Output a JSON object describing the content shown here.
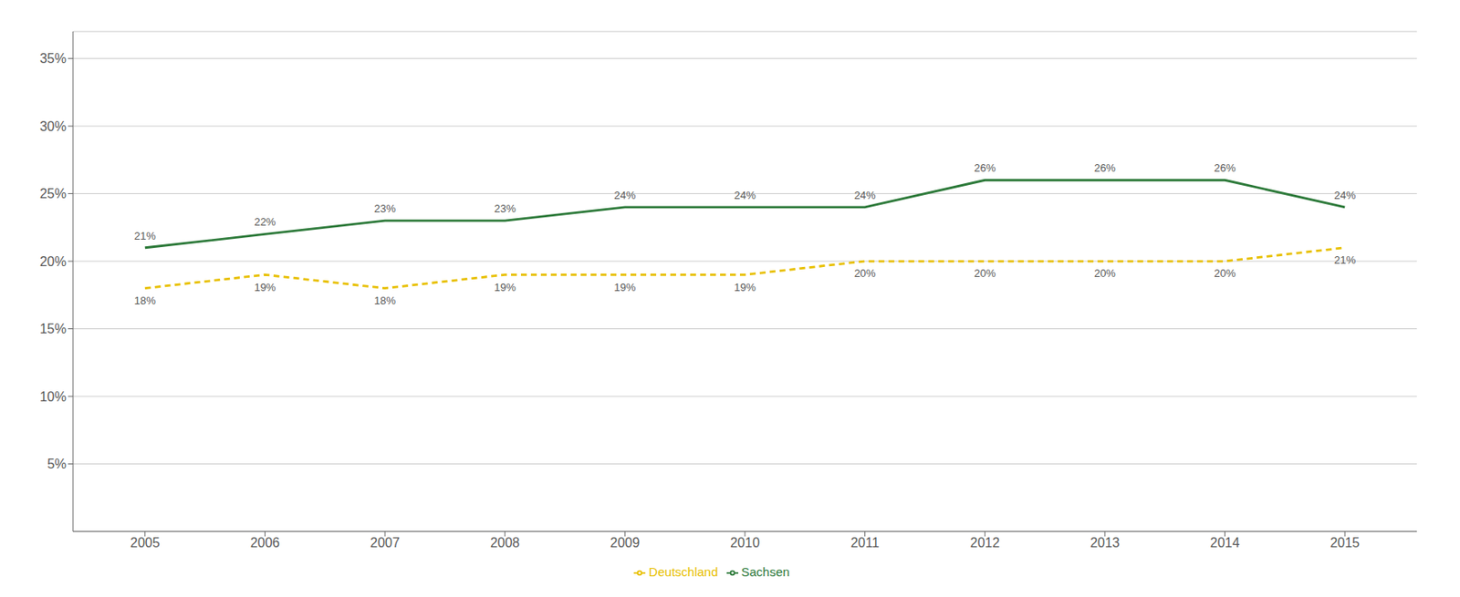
{
  "chart_data": {
    "type": "line",
    "x": [
      2005,
      2006,
      2007,
      2008,
      2009,
      2010,
      2011,
      2012,
      2013,
      2014,
      2015
    ],
    "xlim": [
      2004.4,
      2015.6
    ],
    "xticks": [
      2005,
      2006,
      2007,
      2008,
      2009,
      2010,
      2011,
      2012,
      2013,
      2014,
      2015
    ],
    "ylim": [
      0.0,
      0.37
    ],
    "yticks": [
      {
        "value": 0.05,
        "label": "5%"
      },
      {
        "value": 0.1,
        "label": "10%"
      },
      {
        "value": 0.15,
        "label": "15%"
      },
      {
        "value": 0.2,
        "label": "20%"
      },
      {
        "value": 0.25,
        "label": "25%"
      },
      {
        "value": 0.3,
        "label": "30%"
      },
      {
        "value": 0.35,
        "label": "35%"
      }
    ],
    "grid": true,
    "legend": "bottom",
    "data_labels": true,
    "series": [
      {
        "name": "Sachsen",
        "color": "#2d7a3a",
        "line_style": "solid",
        "values": [
          0.21,
          0.22,
          0.23,
          0.23,
          0.24,
          0.24,
          0.24,
          0.26,
          0.26,
          0.26,
          0.24
        ],
        "value_labels": [
          "21%",
          "22%",
          "23%",
          "23%",
          "24%",
          "24%",
          "24%",
          "26%",
          "26%",
          "26%",
          "24%"
        ]
      },
      {
        "name": "Deutschland",
        "color": "#e8c000",
        "line_style": "dashed",
        "values": [
          0.18,
          0.19,
          0.18,
          0.19,
          0.19,
          0.19,
          0.2,
          0.2,
          0.2,
          0.2,
          0.21
        ],
        "value_labels": [
          "18%",
          "19%",
          "18%",
          "19%",
          "19%",
          "19%",
          "20%",
          "20%",
          "20%",
          "20%",
          "21%"
        ]
      }
    ]
  }
}
